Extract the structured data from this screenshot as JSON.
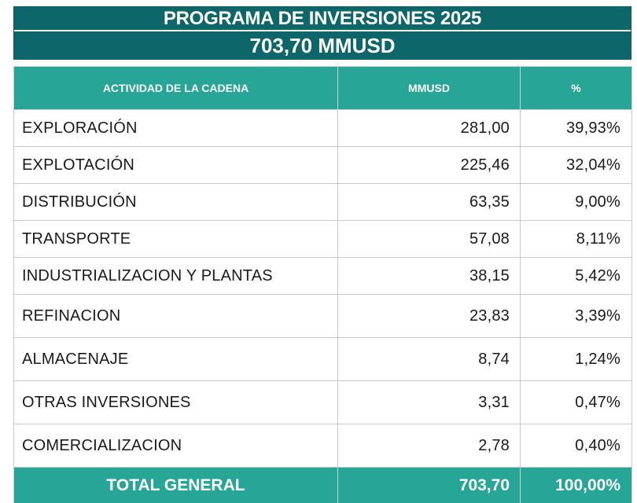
{
  "title": {
    "line1": "PROGRAMA DE INVERSIONES 2025",
    "line2": "703,70 MMUSD"
  },
  "table": {
    "headers": [
      "ACTIVIDAD DE LA CADENA",
      "MMUSD",
      "%"
    ],
    "rows": [
      {
        "activity": "EXPLORACIÓN",
        "mmusd": "281,00",
        "pct": "39,93%"
      },
      {
        "activity": "EXPLOTACIÓN",
        "mmusd": "225,46",
        "pct": "32,04%"
      },
      {
        "activity": "DISTRIBUCIÓN",
        "mmusd": "63,35",
        "pct": "9,00%"
      },
      {
        "activity": "TRANSPORTE",
        "mmusd": "57,08",
        "pct": "8,11%"
      },
      {
        "activity": "INDUSTRIALIZACION Y PLANTAS",
        "mmusd": "38,15",
        "pct": "5,42%"
      },
      {
        "activity": "REFINACION",
        "mmusd": "23,83",
        "pct": "3,39%"
      },
      {
        "activity": "ALMACENAJE",
        "mmusd": "8,74",
        "pct": "1,24%"
      },
      {
        "activity": "OTRAS INVERSIONES",
        "mmusd": "3,31",
        "pct": "0,47%"
      },
      {
        "activity": "COMERCIALIZACION",
        "mmusd": "2,78",
        "pct": "0,40%"
      }
    ],
    "total": {
      "label": "TOTAL GENERAL",
      "mmusd": "703,70",
      "pct": "100,00%"
    }
  },
  "colors": {
    "title_bg": "#0d666a",
    "header_bg": "#27a597",
    "text_on_dark": "#ffffff"
  }
}
